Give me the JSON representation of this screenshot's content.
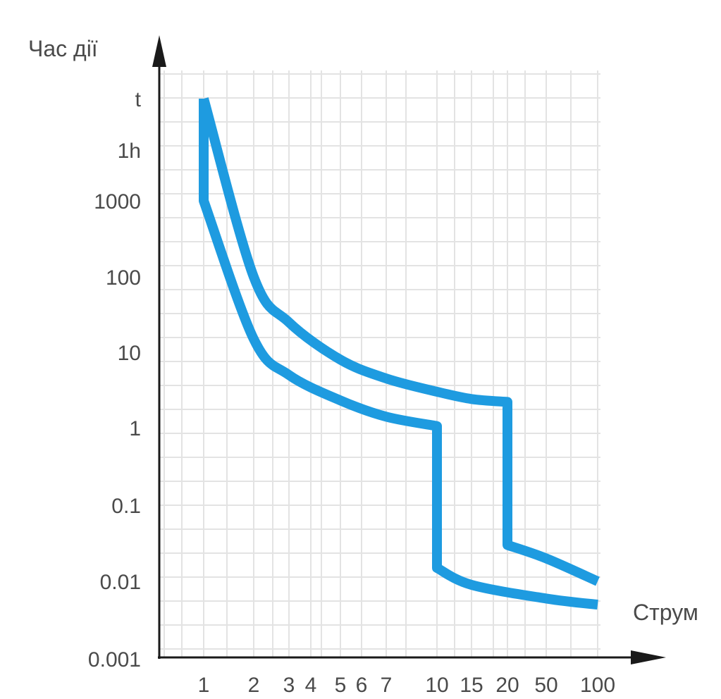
{
  "chart_data": {
    "type": "line",
    "title": "",
    "ylabel": "Час дії",
    "xlabel": "Струм",
    "x_ticks": [
      "1",
      "2",
      "3",
      "4",
      "5",
      "6",
      "7",
      "10",
      "15",
      "20",
      "50",
      "100"
    ],
    "y_ticks": [
      "t",
      "1h",
      "1000",
      "100",
      "10",
      "1",
      "0.1",
      "0.01",
      "0.001"
    ],
    "y_scale": "log",
    "grid": true,
    "series": [
      {
        "values": [
          {
            "x": "1",
            "y": "t"
          },
          {
            "x": "2",
            "y": 100
          },
          {
            "x": "3",
            "y": 25
          },
          {
            "x": "5",
            "y": 8
          },
          {
            "x": "7",
            "y": 4.5
          },
          {
            "x": "10",
            "y": 3
          },
          {
            "x": "15",
            "y": 2.4
          },
          {
            "x": "20",
            "y": 2.2
          },
          {
            "x": "20",
            "y": 0.03
          },
          {
            "x": "50",
            "y": 0.02
          },
          {
            "x": "100",
            "y": 0.01
          }
        ]
      },
      {
        "values": [
          {
            "x": "1",
            "y": "t"
          },
          {
            "x": "1",
            "y": 1000
          },
          {
            "x": "2",
            "y": 15
          },
          {
            "x": "3",
            "y": 5
          },
          {
            "x": "5",
            "y": 2.3
          },
          {
            "x": "7",
            "y": 1.4
          },
          {
            "x": "10",
            "y": 1.05
          },
          {
            "x": "10",
            "y": 0.015
          },
          {
            "x": "15",
            "y": 0.009
          },
          {
            "x": "50",
            "y": 0.006
          },
          {
            "x": "100",
            "y": 0.005
          }
        ]
      }
    ],
    "colors": {
      "curve": "#1e9be0",
      "grid": "#e3e3e3",
      "axis": "#1a1a1a",
      "text": "#4a4a4a"
    }
  }
}
